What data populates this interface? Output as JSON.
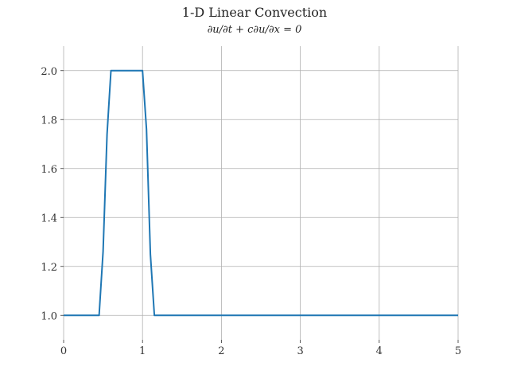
{
  "chart_data": {
    "type": "line",
    "title": "1-D Linear Convection",
    "subtitle": "∂u/∂t + c∂u/∂x = 0",
    "xlim": [
      0,
      5
    ],
    "ylim": [
      0.9,
      2.1
    ],
    "xticks": [
      "0",
      "1",
      "2",
      "3",
      "4",
      "5"
    ],
    "yticks": [
      "1.0",
      "1.2",
      "1.4",
      "1.6",
      "1.8",
      "2.0"
    ],
    "grid": true,
    "series": [
      {
        "color": "#1f77b4",
        "x": [
          0,
          0.45,
          0.5,
          0.55,
          0.6,
          1.0,
          1.05,
          1.1,
          1.15,
          5.0
        ],
        "y": [
          1.0,
          1.0,
          1.26,
          1.74,
          2.0,
          2.0,
          1.76,
          1.25,
          1.0,
          1.0
        ]
      }
    ]
  }
}
